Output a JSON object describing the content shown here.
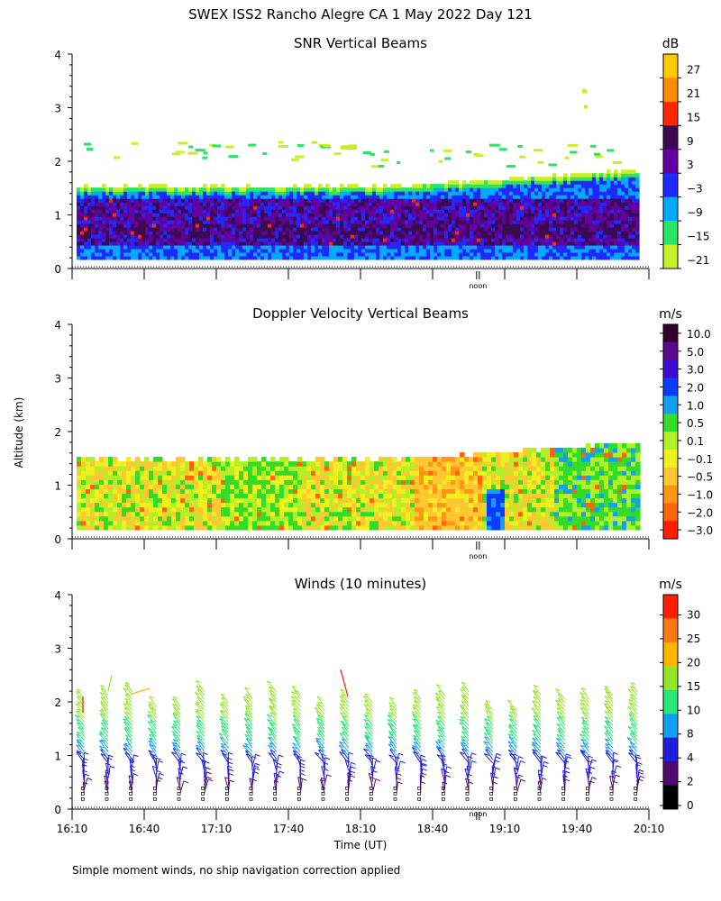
{
  "page_title": "SWEX ISS2 Rancho Alegre CA    1 May 2022 Day 121",
  "shared": {
    "ylabel": "Altitude (km)",
    "xlabel": "Time (UT)",
    "y_ticks": [
      "0",
      "1",
      "2",
      "3",
      "4"
    ],
    "noon_label": "noon",
    "x_tick_labels": [
      "16:10",
      "16:40",
      "17:10",
      "17:40",
      "18:10",
      "18:40",
      "19:10",
      "19:40",
      "20:10"
    ]
  },
  "footnote": "Simple moment winds, no ship navigation correction applied",
  "chart_data": [
    {
      "type": "heatmap",
      "title": "SNR Vertical Beams",
      "ylabel": "Altitude (km)",
      "ylim": [
        0,
        4
      ],
      "x_range": [
        "16:10",
        "20:10"
      ],
      "colorbar": {
        "unit": "dB",
        "labels": [
          "27",
          "21",
          "15",
          "9",
          "3",
          "−3",
          "−9",
          "−15",
          "−21"
        ],
        "colors": [
          "#ffc800",
          "#ff8c00",
          "#ff2800",
          "#3c0a50",
          "#6400a0",
          "#1e28ff",
          "#00aaff",
          "#28e664",
          "#c8f028"
        ]
      },
      "features": {
        "strong_layer_km": [
          0.4,
          1.3
        ],
        "echo_top_km": 1.5,
        "echo_top_late_km": 1.8
      }
    },
    {
      "type": "heatmap",
      "title": "Doppler Velocity Vertical Beams",
      "ylabel": "Altitude (km)",
      "ylim": [
        0,
        4
      ],
      "x_range": [
        "16:10",
        "20:10"
      ],
      "colorbar": {
        "unit": "m/s",
        "labels": [
          "10.0",
          "5.0",
          "3.0",
          "2.0",
          "1.0",
          "0.5",
          "0.1",
          "−0.1",
          "−0.5",
          "−1.0",
          "−2.0",
          "−3.0"
        ],
        "colors": [
          "#320028",
          "#5a0a8c",
          "#3c0ad2",
          "#0a3cff",
          "#14a0f0",
          "#32dc28",
          "#b4f028",
          "#f0f01e",
          "#ffc832",
          "#ff9614",
          "#ff640a",
          "#ff1e00"
        ]
      }
    },
    {
      "type": "scatter",
      "title": "Winds (10 minutes)",
      "ylabel": "Altitude (km)",
      "xlabel": "Time (UT)",
      "ylim": [
        0,
        4
      ],
      "x_range": [
        "16:10",
        "20:10"
      ],
      "profile_times": [
        "16:15",
        "16:25",
        "16:35",
        "16:45",
        "16:55",
        "17:05",
        "17:15",
        "17:25",
        "17:35",
        "17:45",
        "17:55",
        "18:05",
        "18:15",
        "18:25",
        "18:35",
        "18:45",
        "18:55",
        "19:05",
        "19:15",
        "19:25",
        "19:35",
        "19:45",
        "19:55",
        "20:05"
      ],
      "colorbar": {
        "unit": "m/s",
        "labels": [
          "30",
          "25",
          "20",
          "15",
          "10",
          "8",
          "4",
          "2",
          "0"
        ],
        "colors": [
          "#ff1e00",
          "#ff7814",
          "#ffb400",
          "#96e628",
          "#28e678",
          "#14a0f0",
          "#1e1edc",
          "#500a6e",
          "#000000"
        ]
      }
    }
  ]
}
